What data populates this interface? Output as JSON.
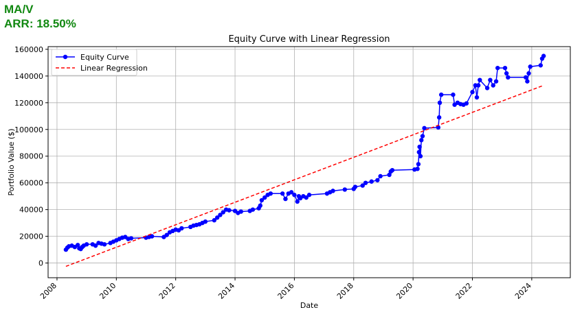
{
  "header": {
    "ticker": "MA/V",
    "arr": "ARR: 18.50%"
  },
  "chart_data": {
    "type": "line",
    "title": "Equity Curve with Linear Regression",
    "xlabel": "Date",
    "ylabel": "Portfolio Value ($)",
    "xlim": [
      2007.7,
      2025.3
    ],
    "ylim": [
      -11000,
      162000
    ],
    "xticks": [
      2008,
      2010,
      2012,
      2014,
      2016,
      2018,
      2020,
      2022,
      2024
    ],
    "yticks": [
      0,
      20000,
      40000,
      60000,
      80000,
      100000,
      120000,
      140000,
      160000
    ],
    "grid": true,
    "legend": {
      "position": "top-left",
      "entries": [
        "Equity Curve",
        "Linear Regression"
      ]
    },
    "series": [
      {
        "name": "Equity Curve",
        "style": "line-marker",
        "color": "#0000ff",
        "points": [
          [
            2008.3,
            10000
          ],
          [
            2008.35,
            11500
          ],
          [
            2008.4,
            12500
          ],
          [
            2008.5,
            13000
          ],
          [
            2008.6,
            12000
          ],
          [
            2008.7,
            13500
          ],
          [
            2008.75,
            11000
          ],
          [
            2008.8,
            10500
          ],
          [
            2008.85,
            12000
          ],
          [
            2008.9,
            13000
          ],
          [
            2009.0,
            14000
          ],
          [
            2009.2,
            14000
          ],
          [
            2009.3,
            13000
          ],
          [
            2009.4,
            15000
          ],
          [
            2009.5,
            14500
          ],
          [
            2009.6,
            14000
          ],
          [
            2009.8,
            15000
          ],
          [
            2009.9,
            16000
          ],
          [
            2010.0,
            17000
          ],
          [
            2010.1,
            18000
          ],
          [
            2010.2,
            19000
          ],
          [
            2010.3,
            19500
          ],
          [
            2010.4,
            18000
          ],
          [
            2010.5,
            18500
          ],
          [
            2011.0,
            19000
          ],
          [
            2011.1,
            19500
          ],
          [
            2011.2,
            20000
          ],
          [
            2011.6,
            19500
          ],
          [
            2011.7,
            21000
          ],
          [
            2011.8,
            23000
          ],
          [
            2011.9,
            24000
          ],
          [
            2012.0,
            25000
          ],
          [
            2012.1,
            24500
          ],
          [
            2012.2,
            26000
          ],
          [
            2012.5,
            27000
          ],
          [
            2012.6,
            28000
          ],
          [
            2012.7,
            28500
          ],
          [
            2012.8,
            29000
          ],
          [
            2012.9,
            30000
          ],
          [
            2013.0,
            31000
          ],
          [
            2013.3,
            32000
          ],
          [
            2013.4,
            34000
          ],
          [
            2013.5,
            36000
          ],
          [
            2013.6,
            38000
          ],
          [
            2013.7,
            40000
          ],
          [
            2013.8,
            39500
          ],
          [
            2014.0,
            39000
          ],
          [
            2014.1,
            37500
          ],
          [
            2014.2,
            38500
          ],
          [
            2014.5,
            39000
          ],
          [
            2014.6,
            40000
          ],
          [
            2014.8,
            41000
          ],
          [
            2014.85,
            43000
          ],
          [
            2014.9,
            47000
          ],
          [
            2015.0,
            49000
          ],
          [
            2015.1,
            51000
          ],
          [
            2015.2,
            52000
          ],
          [
            2015.6,
            52000
          ],
          [
            2015.7,
            48000
          ],
          [
            2015.8,
            52000
          ],
          [
            2015.9,
            53000
          ],
          [
            2016.0,
            51000
          ],
          [
            2016.1,
            46000
          ],
          [
            2016.15,
            50000
          ],
          [
            2016.2,
            48500
          ],
          [
            2016.3,
            50000
          ],
          [
            2016.4,
            49000
          ],
          [
            2016.5,
            51000
          ],
          [
            2017.1,
            52000
          ],
          [
            2017.2,
            53000
          ],
          [
            2017.3,
            54000
          ],
          [
            2017.7,
            55000
          ],
          [
            2018.0,
            55500
          ],
          [
            2018.05,
            57000
          ],
          [
            2018.3,
            58000
          ],
          [
            2018.4,
            60000
          ],
          [
            2018.6,
            61000
          ],
          [
            2018.8,
            62000
          ],
          [
            2018.9,
            65000
          ],
          [
            2019.2,
            66000
          ],
          [
            2019.25,
            68500
          ],
          [
            2019.3,
            69500
          ],
          [
            2020.05,
            70000
          ],
          [
            2020.15,
            70500
          ],
          [
            2020.18,
            74000
          ],
          [
            2020.2,
            83000
          ],
          [
            2020.22,
            87000
          ],
          [
            2020.25,
            80000
          ],
          [
            2020.28,
            92000
          ],
          [
            2020.32,
            95000
          ],
          [
            2020.38,
            101000
          ],
          [
            2020.85,
            101500
          ],
          [
            2020.88,
            109000
          ],
          [
            2020.9,
            120000
          ],
          [
            2020.95,
            126000
          ],
          [
            2021.35,
            126000
          ],
          [
            2021.4,
            118500
          ],
          [
            2021.5,
            120000
          ],
          [
            2021.6,
            119000
          ],
          [
            2021.7,
            118500
          ],
          [
            2021.8,
            119500
          ],
          [
            2022.0,
            128000
          ],
          [
            2022.1,
            133000
          ],
          [
            2022.15,
            124000
          ],
          [
            2022.2,
            133000
          ],
          [
            2022.25,
            137000
          ],
          [
            2022.5,
            131000
          ],
          [
            2022.6,
            137000
          ],
          [
            2022.7,
            133000
          ],
          [
            2022.8,
            136000
          ],
          [
            2022.85,
            146000
          ],
          [
            2023.1,
            146000
          ],
          [
            2023.15,
            142000
          ],
          [
            2023.2,
            139000
          ],
          [
            2023.8,
            139000
          ],
          [
            2023.85,
            136000
          ],
          [
            2023.9,
            142000
          ],
          [
            2023.95,
            147000
          ],
          [
            2024.3,
            148000
          ],
          [
            2024.35,
            153000
          ],
          [
            2024.4,
            155000
          ]
        ]
      },
      {
        "name": "Linear Regression",
        "style": "dashed",
        "color": "#ff0000",
        "points": [
          [
            2008.3,
            -2500
          ],
          [
            2024.4,
            133000
          ]
        ]
      }
    ]
  }
}
